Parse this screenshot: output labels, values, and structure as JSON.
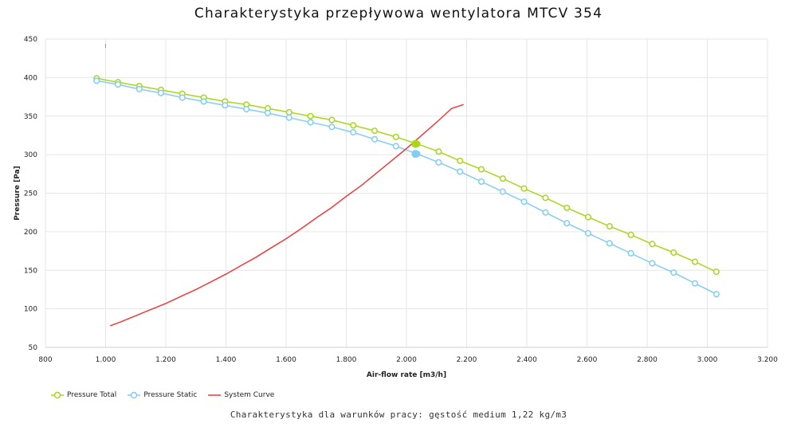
{
  "title": "Charakterystyka przepływowa wentylatora MTCV 354",
  "subtitle": "Charakterystyka dla warunków pracy: gęstość medium 1,22 kg/m3",
  "chart_data": {
    "type": "line",
    "xlabel": "Air-flow rate [m3/h]",
    "ylabel": "Pressure [Pa]",
    "xlim": [
      800,
      3200
    ],
    "ylim": [
      50,
      450
    ],
    "x_ticks": [
      "800",
      "1.000",
      "1.200",
      "1.400",
      "1.600",
      "1.800",
      "2.000",
      "2.200",
      "2.400",
      "2.600",
      "2.800",
      "3.000",
      "3.200"
    ],
    "y_ticks": [
      "50",
      "100",
      "150",
      "200",
      "250",
      "300",
      "350",
      "400",
      "450"
    ],
    "grid": true,
    "legend_position": "bottom-left",
    "series": [
      {
        "name": "Pressure Total",
        "color": "#a8d71a",
        "marker": "open-circle",
        "x": [
          970,
          1041,
          1112,
          1184,
          1255,
          1326,
          1397,
          1468,
          1539,
          1610,
          1681,
          1752,
          1823,
          1894,
          1965,
          2036,
          2107,
          2178,
          2249,
          2320,
          2391,
          2462,
          2533,
          2604,
          2675,
          2746,
          2817,
          2888,
          2959,
          3030
        ],
        "y": [
          399,
          394,
          389,
          384,
          379,
          374,
          369,
          365,
          360,
          355,
          350,
          345,
          338,
          331,
          323,
          314,
          304,
          292,
          281,
          269,
          256,
          244,
          231,
          219,
          207,
          196,
          184,
          173,
          161,
          148
        ]
      },
      {
        "name": "Pressure Static",
        "color": "#82cdf2",
        "marker": "open-circle",
        "x": [
          970,
          1041,
          1112,
          1184,
          1255,
          1326,
          1397,
          1468,
          1539,
          1610,
          1681,
          1752,
          1823,
          1894,
          1965,
          2036,
          2107,
          2178,
          2249,
          2320,
          2391,
          2462,
          2533,
          2604,
          2675,
          2746,
          2817,
          2888,
          2959,
          3030
        ],
        "y": [
          396,
          391,
          385,
          380,
          374,
          369,
          364,
          359,
          354,
          348,
          342,
          336,
          329,
          320,
          311,
          301,
          290,
          278,
          265,
          252,
          239,
          225,
          211,
          198,
          185,
          172,
          159,
          147,
          133,
          119
        ]
      },
      {
        "name": "System Curve",
        "color": "#ee3b3b",
        "marker": "none",
        "x": [
          1015,
          1050,
          1100,
          1150,
          1200,
          1250,
          1300,
          1350,
          1400,
          1450,
          1500,
          1550,
          1600,
          1650,
          1700,
          1750,
          1800,
          1850,
          1900,
          1950,
          2000,
          2050,
          2100,
          2150,
          2190
        ],
        "y": [
          78,
          83,
          91,
          99,
          107,
          116,
          125,
          135,
          145,
          156,
          167,
          179,
          191,
          204,
          218,
          231,
          246,
          260,
          276,
          292,
          308,
          325,
          342,
          360,
          365
        ]
      }
    ],
    "operating_points": [
      {
        "series": "Pressure Total",
        "x": 2030,
        "y": 314,
        "color": "#a8d71a"
      },
      {
        "series": "Pressure Static",
        "x": 2030,
        "y": 301,
        "color": "#82cdf2"
      }
    ]
  }
}
